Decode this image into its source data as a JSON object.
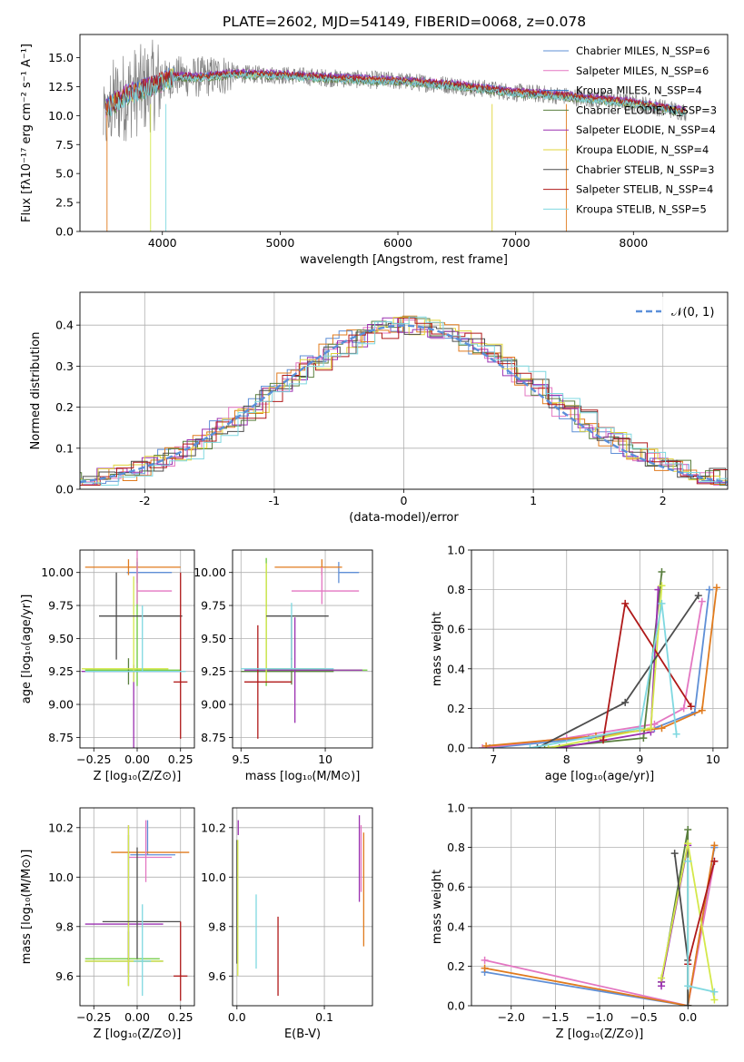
{
  "figure": {
    "title": "PLATE=2602, MJD=54149, FIBERID=0068, z=0.078"
  },
  "palette": [
    "#5f8fd6",
    "#e377c2",
    "#2f76c8",
    "#5a7f3f",
    "#9b30b0",
    "#e0d43a",
    "#4d4d4d",
    "#b01919",
    "#7fd8e0",
    "#e07b1e",
    "#6bc83a",
    "#d4e84a"
  ],
  "chart_data": [
    {
      "id": "spectrum",
      "type": "line",
      "title": "PLATE=2602, MJD=54149, FIBERID=0068, z=0.078",
      "xlabel": "wavelength [Angstrom, rest frame]",
      "ylabel": "Flux [fλ10⁻¹⁷ erg cm⁻² s⁻¹ A⁻¹]",
      "xlim": [
        3300,
        8800
      ],
      "ylim": [
        0,
        17
      ],
      "xticks": [
        4000,
        5000,
        6000,
        7000,
        8000
      ],
      "yticks": [
        0.0,
        2.5,
        5.0,
        7.5,
        10.0,
        12.5,
        15.0
      ],
      "legend_position": "top-right",
      "legend": [
        "Chabrier MILES, N_SSP=6",
        "Salpeter MILES, N_SSP=6",
        "Kroupa MILES, N_SSP=4",
        "Chabrier ELODIE, N_SSP=3",
        "Salpeter ELODIE, N_SSP=4",
        "Kroupa ELODIE, N_SSP=4",
        "Chabrier STELIB, N_SSP=3",
        "Salpeter STELIB, N_SSP=4",
        "Kroupa STELIB, N_SSP=5"
      ],
      "legend_colors": [
        "#5f8fd6",
        "#e377c2",
        "#2f76c8",
        "#5a7f3f",
        "#9b30b0",
        "#e0d43a",
        "#4d4d4d",
        "#b01919",
        "#7fd8e0"
      ],
      "data_series": {
        "name": "data",
        "color": "#808080",
        "x_range": [
          3500,
          8450
        ]
      },
      "continuum_anchors": {
        "x": [
          3500,
          3700,
          3900,
          4100,
          4300,
          4600,
          5000,
          5500,
          6000,
          6500,
          7000,
          7300,
          7600,
          8000,
          8450
        ],
        "y": [
          10.5,
          11.8,
          12.5,
          13.4,
          13.3,
          13.6,
          13.5,
          13.2,
          13.0,
          12.6,
          12.0,
          11.8,
          11.5,
          11.1,
          10.3
        ]
      }
    },
    {
      "id": "residuals",
      "type": "step",
      "xlabel": "(data-model)/error",
      "ylabel": "Normed distribution",
      "xlim": [
        -2.5,
        2.5
      ],
      "ylim": [
        0,
        0.48
      ],
      "xticks": [
        -2,
        -1,
        0,
        1,
        2
      ],
      "yticks": [
        0.0,
        0.1,
        0.2,
        0.3,
        0.4
      ],
      "grid": true,
      "legend": [
        "𝒩(0, 1)"
      ],
      "legend_position": "top-right",
      "reference_curve": {
        "type": "normal",
        "mean": 0,
        "sigma": 1,
        "color": "#5b8fd9",
        "style": "dashed"
      },
      "histograms": 9
    },
    {
      "id": "age-vs-Z",
      "type": "errorbar",
      "xlabel": "Z [log₁₀(Z/Z⊙)]",
      "ylabel": "age  [log₁₀(age/yr)]",
      "xlim": [
        -0.33,
        0.33
      ],
      "ylim": [
        8.67,
        10.17
      ],
      "xticks": [
        -0.25,
        0.0,
        0.25
      ],
      "xtick_labels": [
        "−0.25",
        "0.00",
        "0.25"
      ],
      "yticks": [
        8.75,
        9.0,
        9.25,
        9.5,
        9.75,
        10.0
      ],
      "ytick_labels": [
        "8.75",
        "9.00",
        "9.25",
        "9.50",
        "9.75",
        "10.00"
      ],
      "points": [
        {
          "x": 0.0,
          "y": 10.0,
          "xerr": [
            0.06,
            0.2
          ],
          "yerr": [
            0.08,
            0.08
          ],
          "color": "#5f8fd6"
        },
        {
          "x": 0.0,
          "y": 9.26,
          "xerr": [
            0.3,
            0.25
          ],
          "yerr": [
            0.12,
            0.85
          ],
          "color": "#6bc83a"
        },
        {
          "x": -0.05,
          "y": 10.04,
          "xerr": [
            0.25,
            0.3
          ],
          "yerr": [
            0.06,
            0.06
          ],
          "color": "#e07b1e"
        },
        {
          "x": 0.0,
          "y": 9.86,
          "xerr": [
            0.0,
            0.2
          ],
          "yerr": [
            0.1,
            0.34
          ],
          "color": "#e377c2"
        },
        {
          "x": -0.05,
          "y": 9.25,
          "xerr": [
            0.25,
            0.3
          ],
          "yerr": [
            0.1,
            0.1
          ],
          "color": "#5a7f3f"
        },
        {
          "x": -0.02,
          "y": 9.25,
          "xerr": [
            0.3,
            0.27
          ],
          "yerr": [
            0.8,
            0.05
          ],
          "color": "#9b30b0"
        },
        {
          "x": -0.02,
          "y": 9.27,
          "xerr": [
            0.3,
            0.2
          ],
          "yerr": [
            0.1,
            0.7
          ],
          "color": "#d4e84a"
        },
        {
          "x": -0.12,
          "y": 9.67,
          "xerr": [
            0.1,
            0.38
          ],
          "yerr": [
            0.33,
            0.33
          ],
          "color": "#4d4d4d"
        },
        {
          "x": 0.25,
          "y": 9.17,
          "xerr": [
            0.04,
            0.04
          ],
          "yerr": [
            0.43,
            0.83
          ],
          "color": "#b01919"
        },
        {
          "x": 0.03,
          "y": 9.25,
          "xerr": [
            0.33,
            0.25
          ],
          "yerr": [
            0.0,
            0.5
          ],
          "color": "#7fd8e0"
        }
      ]
    },
    {
      "id": "age-vs-mass",
      "type": "errorbar",
      "xlabel": "mass [log₁₀(M/M⊙)]",
      "xlim": [
        9.45,
        10.28
      ],
      "ylim": [
        8.67,
        10.17
      ],
      "xticks": [
        9.5,
        10.0
      ],
      "yticks": [
        8.75,
        9.0,
        9.25,
        9.5,
        9.75,
        10.0
      ],
      "ytick_labels": [
        "8.75",
        "9.00",
        "9.25",
        "9.50",
        "9.75",
        "10.00"
      ],
      "points": [
        {
          "x": 10.08,
          "y": 10.0,
          "xerr": [
            0.0,
            0.12
          ],
          "yerr": [
            0.08,
            0.08
          ],
          "color": "#5f8fd6"
        },
        {
          "x": 9.65,
          "y": 9.26,
          "xerr": [
            0.0,
            0.6
          ],
          "yerr": [
            0.12,
            0.85
          ],
          "color": "#6bc83a"
        },
        {
          "x": 9.98,
          "y": 10.04,
          "xerr": [
            0.28,
            0.12
          ],
          "yerr": [
            0.06,
            0.06
          ],
          "color": "#e07b1e"
        },
        {
          "x": 9.98,
          "y": 9.86,
          "xerr": [
            0.18,
            0.22
          ],
          "yerr": [
            0.1,
            0.18
          ],
          "color": "#e377c2"
        },
        {
          "x": 9.8,
          "y": 9.25,
          "xerr": [
            0.3,
            0.25
          ],
          "yerr": [
            0.1,
            0.1
          ],
          "color": "#5a7f3f"
        },
        {
          "x": 9.82,
          "y": 9.26,
          "xerr": [
            0.3,
            0.4
          ],
          "yerr": [
            0.4,
            0.4
          ],
          "color": "#9b30b0"
        },
        {
          "x": 9.65,
          "y": 9.27,
          "xerr": [
            0.0,
            0.35
          ],
          "yerr": [
            0.1,
            0.8
          ],
          "color": "#d4e84a"
        },
        {
          "x": 9.8,
          "y": 9.67,
          "xerr": [
            0.15,
            0.22
          ],
          "yerr": [
            0.33,
            0.0
          ],
          "color": "#4d4d4d"
        },
        {
          "x": 9.6,
          "y": 9.17,
          "xerr": [
            0.08,
            0.2
          ],
          "yerr": [
            0.43,
            0.43
          ],
          "color": "#b01919"
        },
        {
          "x": 9.8,
          "y": 9.27,
          "xerr": [
            0.3,
            0.25
          ],
          "yerr": [
            0.0,
            0.5
          ],
          "color": "#7fd8e0"
        }
      ]
    },
    {
      "id": "mass-weight-vs-age",
      "type": "line",
      "xlabel": "age  [log₁₀(age/yr)]",
      "ylabel": "mass weight",
      "xlim": [
        6.7,
        10.2
      ],
      "ylim": [
        0.0,
        1.0
      ],
      "xticks": [
        7,
        8,
        9,
        10
      ],
      "yticks": [
        0.0,
        0.2,
        0.4,
        0.6,
        0.8,
        1.0
      ],
      "ytick_labels": [
        "0.0",
        "0.2",
        "0.4",
        "0.6",
        "0.8",
        "1.0"
      ],
      "grid": true,
      "series": [
        {
          "color": "#5f8fd6",
          "x": [
            6.95,
            8.3,
            9.2,
            9.75,
            9.95
          ],
          "y": [
            0.0,
            0.05,
            0.1,
            0.18,
            0.8
          ]
        },
        {
          "color": "#e377c2",
          "x": [
            6.85,
            8.0,
            9.2,
            9.6,
            9.85
          ],
          "y": [
            0.0,
            0.05,
            0.12,
            0.2,
            0.74
          ]
        },
        {
          "color": "#e07b1e",
          "x": [
            6.9,
            8.4,
            9.3,
            9.85,
            10.05
          ],
          "y": [
            0.01,
            0.06,
            0.1,
            0.19,
            0.81
          ]
        },
        {
          "color": "#5a7f3f",
          "x": [
            7.7,
            9.05,
            9.3
          ],
          "y": [
            0.0,
            0.05,
            0.89
          ]
        },
        {
          "color": "#9b30b0",
          "x": [
            7.9,
            9.15,
            9.25
          ],
          "y": [
            0.0,
            0.08,
            0.8
          ]
        },
        {
          "color": "#d4e84a",
          "x": [
            7.75,
            9.15,
            9.3
          ],
          "y": [
            0.0,
            0.1,
            0.82
          ]
        },
        {
          "color": "#4d4d4d",
          "x": [
            7.6,
            8.8,
            9.8
          ],
          "y": [
            0.0,
            0.23,
            0.77
          ]
        },
        {
          "color": "#b01919",
          "x": [
            8.5,
            8.8,
            9.7
          ],
          "y": [
            0.04,
            0.73,
            0.21
          ]
        },
        {
          "color": "#7fd8e0",
          "x": [
            7.5,
            9.0,
            9.3,
            9.5
          ],
          "y": [
            0.0,
            0.1,
            0.73,
            0.07
          ]
        }
      ]
    },
    {
      "id": "mass-vs-Z",
      "type": "errorbar",
      "xlabel": "Z [log₁₀(Z/Z⊙)]",
      "ylabel": "mass [log₁₀(M/M⊙)]",
      "xlim": [
        -0.33,
        0.33
      ],
      "ylim": [
        9.48,
        10.28
      ],
      "xticks": [
        -0.25,
        0.0,
        0.25
      ],
      "xtick_labels": [
        "−0.25",
        "0.00",
        "0.25"
      ],
      "yticks": [
        9.6,
        9.8,
        10.0,
        10.2
      ],
      "ytick_labels": [
        "9.6",
        "9.8",
        "10.0",
        "10.2"
      ],
      "points": [
        {
          "x": 0.06,
          "y": 10.09,
          "xerr": [
            0.1,
            0.16
          ],
          "yerr": [
            0.0,
            0.14
          ],
          "color": "#5f8fd6"
        },
        {
          "x": -0.05,
          "y": 9.67,
          "xerr": [
            0.25,
            0.18
          ],
          "yerr": [
            0.0,
            0.5
          ],
          "color": "#6bc83a"
        },
        {
          "x": 0.05,
          "y": 10.1,
          "xerr": [
            0.2,
            0.25
          ],
          "yerr": [
            0.0,
            0.0
          ],
          "color": "#e07b1e"
        },
        {
          "x": 0.05,
          "y": 10.08,
          "xerr": [
            0.1,
            0.15
          ],
          "yerr": [
            0.1,
            0.15
          ],
          "color": "#e377c2"
        },
        {
          "x": -0.05,
          "y": 9.66,
          "xerr": [
            0.25,
            0.2
          ],
          "yerr": [
            0.1,
            0.12
          ],
          "color": "#5a7f3f"
        },
        {
          "x": -0.05,
          "y": 9.81,
          "xerr": [
            0.25,
            0.2
          ],
          "yerr": [
            0.2,
            0.4
          ],
          "color": "#9b30b0"
        },
        {
          "x": -0.05,
          "y": 9.66,
          "xerr": [
            0.25,
            0.2
          ],
          "yerr": [
            0.1,
            0.55
          ],
          "color": "#d4e84a"
        },
        {
          "x": 0.0,
          "y": 9.82,
          "xerr": [
            0.2,
            0.25
          ],
          "yerr": [
            0.15,
            0.3
          ],
          "color": "#4d4d4d"
        },
        {
          "x": 0.25,
          "y": 9.6,
          "xerr": [
            0.04,
            0.04
          ],
          "yerr": [
            0.1,
            0.22
          ],
          "color": "#b01919"
        },
        {
          "x": 0.03,
          "y": 9.66,
          "xerr": [
            0.05,
            0.05
          ],
          "yerr": [
            0.14,
            0.23
          ],
          "color": "#7fd8e0"
        }
      ]
    },
    {
      "id": "mass-vs-EBV",
      "type": "errorbar",
      "xlabel": "E(B-V)",
      "xlim": [
        -0.005,
        0.155
      ],
      "ylim": [
        9.48,
        10.28
      ],
      "xticks": [
        0.0,
        0.1
      ],
      "xtick_labels": [
        "0.0",
        "0.1"
      ],
      "yticks": [
        9.6,
        9.8,
        10.0,
        10.2
      ],
      "ytick_labels": [
        "9.6",
        "9.8",
        "10.0",
        "10.2"
      ],
      "points": [
        {
          "x": 0.14,
          "y": 10.0,
          "xerr": [
            0,
            0
          ],
          "yerr": [
            0.1,
            0.25
          ],
          "color": "#9b30b0"
        },
        {
          "x": 0.142,
          "y": 10.06,
          "xerr": [
            0,
            0
          ],
          "yerr": [
            0.12,
            0.15
          ],
          "color": "#e377c2"
        },
        {
          "x": 0.145,
          "y": 9.95,
          "xerr": [
            0,
            0
          ],
          "yerr": [
            0.23,
            0.23
          ],
          "color": "#e07b1e"
        },
        {
          "x": 0.0,
          "y": 9.85,
          "xerr": [
            0,
            0
          ],
          "yerr": [
            0.2,
            0.3
          ],
          "color": "#4d4d4d"
        },
        {
          "x": 0.001,
          "y": 9.7,
          "xerr": [
            0,
            0
          ],
          "yerr": [
            0.1,
            0.45
          ],
          "color": "#d4e84a"
        },
        {
          "x": 0.022,
          "y": 9.78,
          "xerr": [
            0,
            0
          ],
          "yerr": [
            0.15,
            0.15
          ],
          "color": "#7fd8e0"
        },
        {
          "x": 0.047,
          "y": 9.73,
          "xerr": [
            0,
            0
          ],
          "yerr": [
            0.21,
            0.11
          ],
          "color": "#b01919"
        },
        {
          "x": 0.0015,
          "y": 10.2,
          "xerr": [
            0,
            0
          ],
          "yerr": [
            0.03,
            0.03
          ],
          "color": "#9b30b0"
        }
      ]
    },
    {
      "id": "mass-weight-vs-Z",
      "type": "line",
      "xlabel": "Z [log₁₀(Z/Z⊙)]",
      "ylabel": "mass weight",
      "xlim": [
        -2.45,
        0.45
      ],
      "ylim": [
        0.0,
        1.0
      ],
      "xticks": [
        -2.0,
        -1.5,
        -1.0,
        -0.5,
        0.0
      ],
      "xtick_labels": [
        "−2.0",
        "−1.5",
        "−1.0",
        "−0.5",
        "0.0"
      ],
      "yticks": [
        0.0,
        0.2,
        0.4,
        0.6,
        0.8,
        1.0
      ],
      "ytick_labels": [
        "0.0",
        "0.2",
        "0.4",
        "0.6",
        "0.8",
        "1.0"
      ],
      "grid": true,
      "series": [
        {
          "color": "#5f8fd6",
          "x": [
            -2.3,
            0.0,
            0.3
          ],
          "y": [
            0.17,
            0.0,
            0.8
          ]
        },
        {
          "color": "#e377c2",
          "x": [
            -2.3,
            0.0,
            0.3
          ],
          "y": [
            0.23,
            0.0,
            0.73
          ]
        },
        {
          "color": "#e07b1e",
          "x": [
            -2.3,
            0.0,
            0.3
          ],
          "y": [
            0.19,
            0.0,
            0.81
          ]
        },
        {
          "color": "#5a7f3f",
          "x": [
            -0.3,
            0.0,
            0.0
          ],
          "y": [
            0.12,
            0.89,
            0.0
          ]
        },
        {
          "color": "#9b30b0",
          "x": [
            -0.3,
            -0.3,
            0.0
          ],
          "y": [
            0.1,
            0.12,
            0.81
          ]
        },
        {
          "color": "#d4e84a",
          "x": [
            -0.3,
            0.0,
            0.3
          ],
          "y": [
            0.14,
            0.82,
            0.03
          ]
        },
        {
          "color": "#4d4d4d",
          "x": [
            -0.15,
            0.0,
            0.0
          ],
          "y": [
            0.77,
            0.23,
            0.0
          ]
        },
        {
          "color": "#b01919",
          "x": [
            0.0,
            0.3
          ],
          "y": [
            0.21,
            0.73
          ]
        },
        {
          "color": "#7fd8e0",
          "x": [
            0.0,
            0.0,
            0.3
          ],
          "y": [
            0.73,
            0.1,
            0.07
          ]
        }
      ]
    }
  ]
}
